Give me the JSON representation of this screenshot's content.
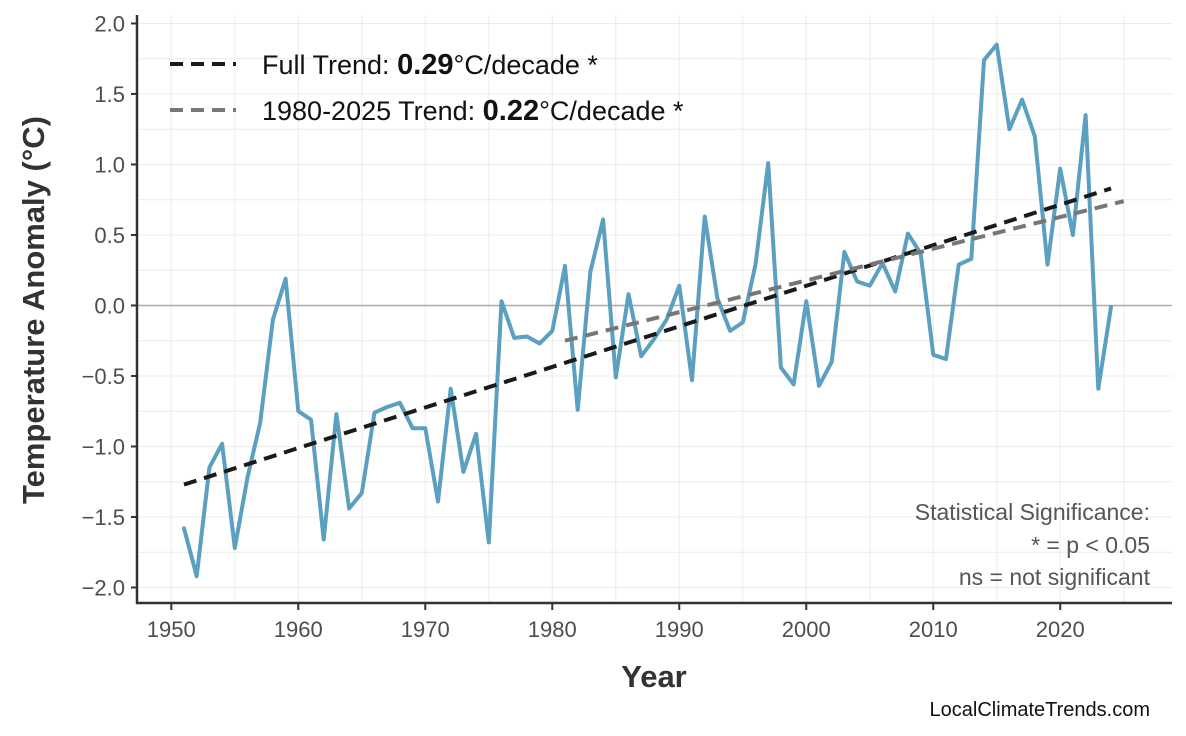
{
  "chart_data": {
    "type": "line",
    "title": "",
    "xlabel": "Year",
    "ylabel": "Temperature Anomaly (°C)",
    "xlim": [
      1947.3,
      2028.8
    ],
    "ylim": [
      -2.11,
      2.06
    ],
    "grid": true,
    "x_ticks": [
      "1950",
      "1960",
      "1970",
      "1980",
      "1990",
      "2000",
      "2010",
      "2020"
    ],
    "y_ticks": [
      "−2.0",
      "−1.5",
      "−1.0",
      "−0.5",
      "0.0",
      "0.5",
      "1.0",
      "1.5",
      "2.0"
    ],
    "zero_line": true,
    "series": [
      {
        "color": "#5ba0c0",
        "x": [
          1951,
          1952,
          1953,
          1954,
          1955,
          1956,
          1957,
          1958,
          1959,
          1960,
          1961,
          1962,
          1963,
          1964,
          1965,
          1966,
          1967,
          1968,
          1969,
          1970,
          1971,
          1972,
          1973,
          1974,
          1975,
          1976,
          1977,
          1978,
          1979,
          1980,
          1981,
          1982,
          1983,
          1984,
          1985,
          1986,
          1987,
          1988,
          1989,
          1990,
          1991,
          1992,
          1993,
          1994,
          1995,
          1996,
          1997,
          1998,
          1999,
          2000,
          2001,
          2002,
          2003,
          2004,
          2005,
          2006,
          2007,
          2008,
          2009,
          2010,
          2011,
          2012,
          2013,
          2014,
          2015,
          2016,
          2017,
          2018,
          2019,
          2020,
          2021,
          2022,
          2023,
          2024
        ],
        "y": [
          -1.58,
          -1.92,
          -1.15,
          -0.98,
          -1.72,
          -1.22,
          -0.83,
          -0.1,
          0.19,
          -0.75,
          -0.81,
          -1.66,
          -0.77,
          -1.44,
          -1.33,
          -0.76,
          -0.72,
          -0.69,
          -0.87,
          -0.87,
          -1.39,
          -0.59,
          -1.18,
          -0.91,
          -1.68,
          0.03,
          -0.23,
          -0.22,
          -0.27,
          -0.18,
          0.28,
          -0.74,
          0.24,
          0.61,
          -0.51,
          0.08,
          -0.36,
          -0.24,
          -0.1,
          0.14,
          -0.53,
          0.63,
          0.05,
          -0.18,
          -0.12,
          0.29,
          1.01,
          -0.44,
          -0.56,
          0.03,
          -0.57,
          -0.4,
          0.38,
          0.17,
          0.14,
          0.3,
          0.1,
          0.51,
          0.37,
          -0.35,
          -0.38,
          0.29,
          0.33,
          1.74,
          1.85,
          1.25,
          1.46,
          1.2,
          0.29,
          0.97,
          0.5,
          1.35,
          -0.59,
          -0.01
        ]
      }
    ],
    "trends": [
      {
        "label_prefix": "Full Trend: ",
        "value": "0.29",
        "label_suffix": "°C/decade *",
        "color": "#1a1a1a",
        "x": [
          1951,
          2024
        ],
        "y": [
          -1.27,
          0.83
        ]
      },
      {
        "label_prefix": "1980-2025 Trend: ",
        "value": "0.22",
        "label_suffix": "°C/decade *",
        "color": "#777777",
        "x": [
          1981,
          2025
        ],
        "y": [
          -0.25,
          0.74
        ]
      }
    ],
    "legend_position": "top-left",
    "annotation": [
      "Statistical Significance:",
      "* = p < 0.05",
      "ns = not significant"
    ]
  },
  "credit": "LocalClimateTrends.com"
}
